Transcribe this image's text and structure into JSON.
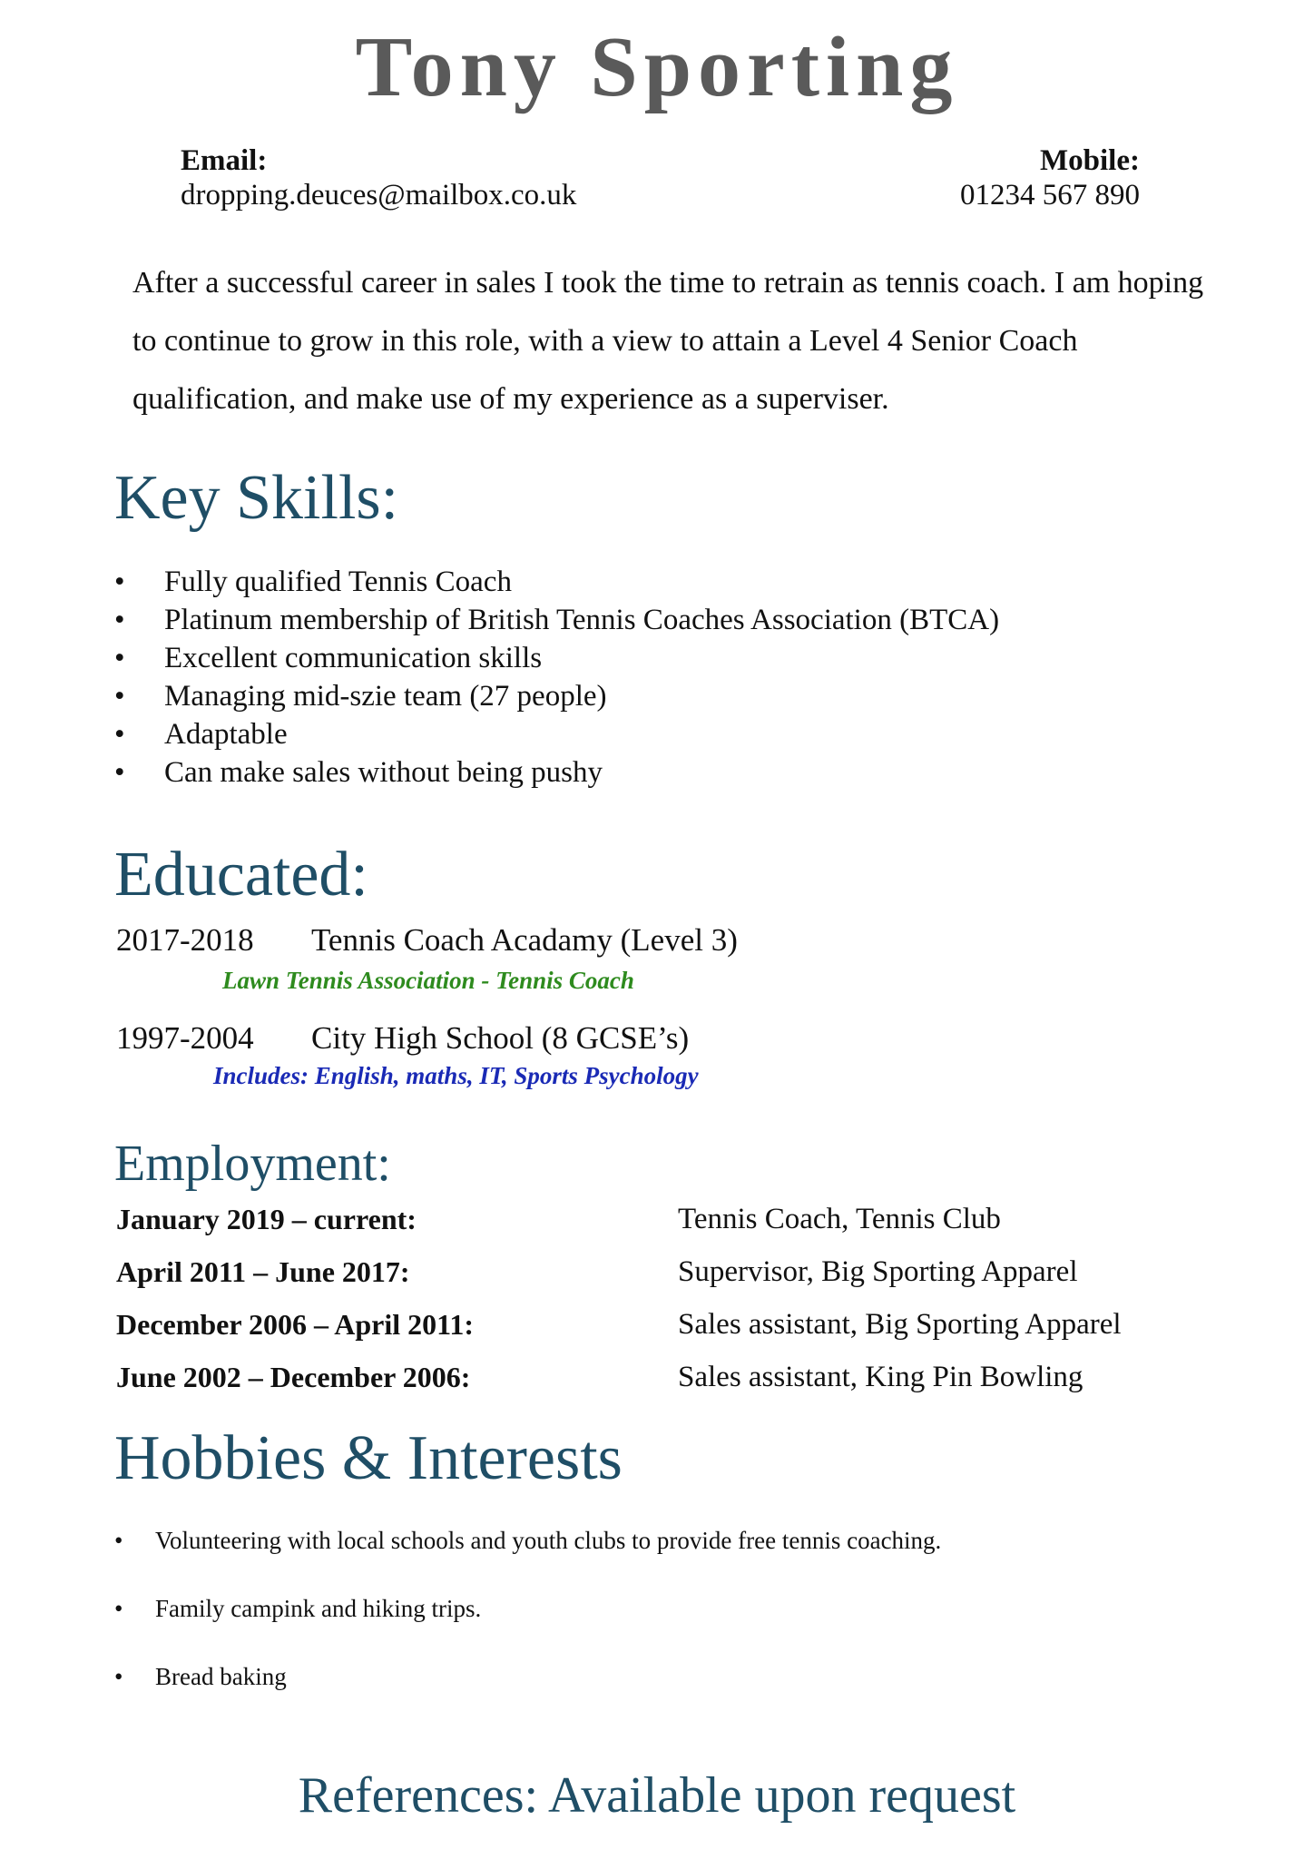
{
  "header": {
    "name": "Tony Sporting",
    "email_label": "Email:",
    "email": "dropping.deuces@mailbox.co.uk",
    "mobile_label": "Mobile:",
    "mobile": "01234 567 890"
  },
  "summary": "After a successful career in sales I took the time to retrain as tennis coach. I am hoping to continue to grow in this role, with a view to attain a Level 4 Senior Coach qualification, and make use of my experience as a superviser.",
  "skills": {
    "heading": "Key Skills:",
    "items": [
      "Fully qualified Tennis Coach",
      "Platinum membership of British Tennis Coaches Association (BTCA)",
      "Excellent communication skills",
      "Managing mid-szie team (27 people)",
      "Adaptable",
      "Can make sales without being pushy"
    ]
  },
  "education": {
    "heading": "Educated:",
    "entries": [
      {
        "years": "2017-2018",
        "title": "Tennis Coach Acadamy (Level 3)",
        "note": "Lawn Tennis Association - Tennis Coach"
      },
      {
        "years": "1997-2004",
        "title": "City High School (8 GCSE’s)",
        "note": "Includes: English, maths, IT, Sports Psychology"
      }
    ]
  },
  "employment": {
    "heading": "Employment:",
    "entries": [
      {
        "dates": "January 2019 – current:",
        "role": "Tennis Coach, Tennis Club"
      },
      {
        "dates": "April 2011 – June 2017:",
        "role": "Supervisor, Big Sporting Apparel"
      },
      {
        "dates": "December 2006 – April 2011:",
        "role": "Sales assistant, Big Sporting Apparel"
      },
      {
        "dates": "June 2002 – December 2006:",
        "role": "Sales assistant, King Pin Bowling"
      }
    ]
  },
  "hobbies": {
    "heading": "Hobbies & Interests",
    "items": [
      "Volunteering with local schools and youth clubs to provide free tennis coaching.",
      "Family campink and hiking trips.",
      "Bread baking"
    ]
  },
  "references": "References: Available upon request",
  "colors": {
    "heading": "#1f4e66",
    "name": "#5a5a5a",
    "note_green": "#2e8b1e",
    "note_blue": "#1a2ab5"
  }
}
